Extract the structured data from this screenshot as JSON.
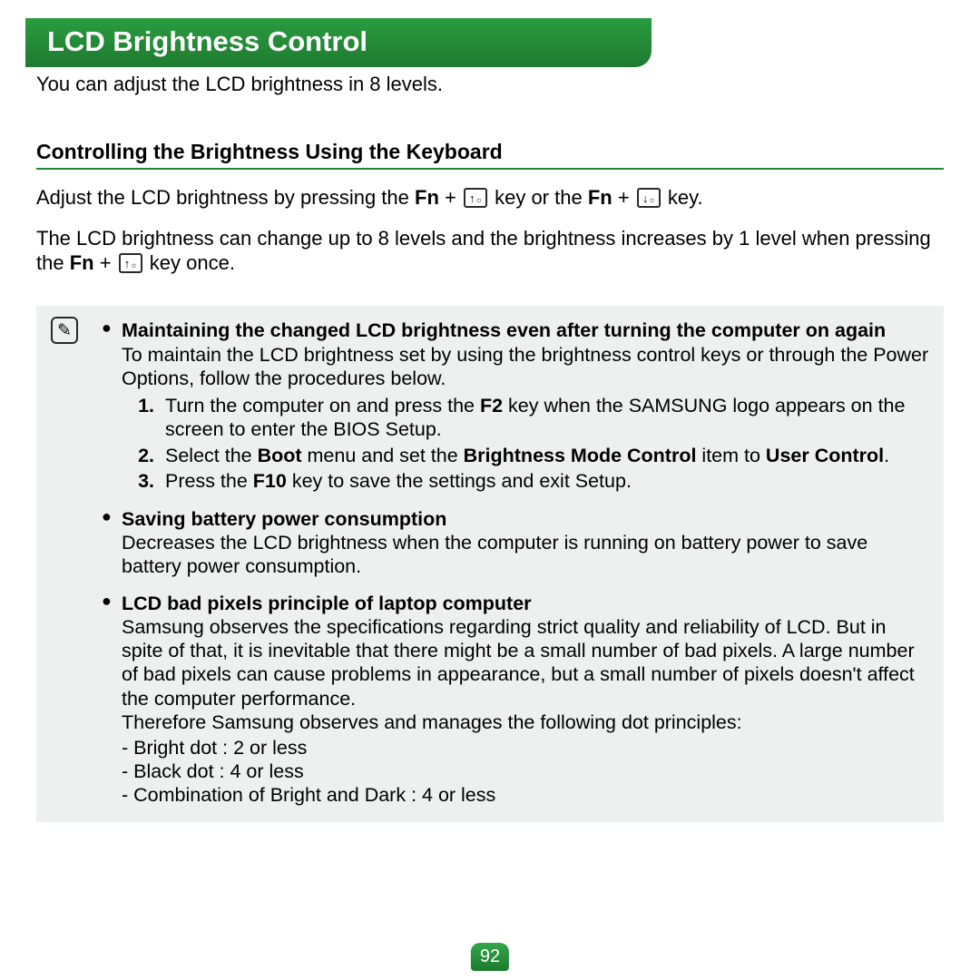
{
  "title": "LCD Brightness Control",
  "intro": "You can adjust the LCD brightness in 8 levels.",
  "section2_heading": "Controlling the Brightness Using the Keyboard",
  "para1_pre": "Adjust the LCD brightness by pressing the ",
  "fn": "Fn",
  "plus": " + ",
  "key_up_arrow": "↑",
  "key_up_sun": "☼",
  "para1_mid": " key or the ",
  "key_dn_arrow": "↓",
  "key_dn_sun": "☼",
  "para1_end": " key.",
  "para2_pre": "The LCD brightness can change up to 8 levels and the brightness increases by 1 level when pressing the ",
  "para2_end": " key once.",
  "note_icon": "✎",
  "note": {
    "s1_title": "Maintaining the changed LCD brightness even after turning the computer on again",
    "s1_body": "To maintain the LCD brightness set by using the brightness control keys or through the Power Options, follow the procedures below.",
    "s1_li1_a": "Turn the computer on and press the ",
    "s1_li1_f2": "F2",
    "s1_li1_b": " key when the SAMSUNG logo appears on the screen to enter the BIOS Setup.",
    "s1_li2_a": "Select the ",
    "s1_li2_boot": "Boot",
    "s1_li2_b": " menu and set the ",
    "s1_li2_bmc": "Brightness Mode Control",
    "s1_li2_c": " item to ",
    "s1_li2_uc": "User Control",
    "s1_li2_d": ".",
    "s1_li3_a": "Press the ",
    "s1_li3_f10": "F10",
    "s1_li3_b": " key to save the settings and exit Setup.",
    "s2_title": "Saving battery power consumption",
    "s2_body": "Decreases the LCD brightness when the computer is running on battery power to save battery power consumption.",
    "s3_title": "LCD bad pixels principle of laptop computer",
    "s3_body1": "Samsung observes the specifications regarding strict quality and reliability of LCD. But in spite of that, it is inevitable that there might be a small number of bad pixels. A large number of bad pixels can cause problems in appearance, but a small number of pixels doesn't affect the computer performance.",
    "s3_body2": "Therefore Samsung observes and manages the following dot principles:",
    "s3_d1": "- Bright dot : 2 or less",
    "s3_d2": "- Black dot  : 4 or less",
    "s3_d3": "- Combination of Bright and Dark : 4 or less"
  },
  "page_number": "92",
  "colors": {
    "green_top": "#2a9c3f",
    "green_bottom": "#1e7a30",
    "underline": "#1e8a33",
    "note_bg": "#eef0ef",
    "text": "#000000"
  }
}
